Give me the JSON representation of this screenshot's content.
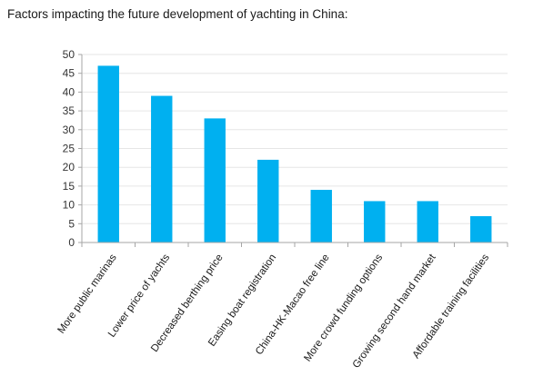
{
  "chart_data": {
    "type": "bar",
    "title": "Factors impacting the future development of yachting in China:",
    "xlabel": "",
    "ylabel": "",
    "categories": [
      "More public marinas",
      "Lower price of yachts",
      "Decreased berthing price",
      "Easing boat registration",
      "China-HK-Macao free line",
      "More crowd funding options",
      "Growing second hand market",
      "Affordable training facilities"
    ],
    "values": [
      47,
      39,
      33,
      22,
      14,
      11,
      11,
      7
    ],
    "ylim": [
      0,
      50
    ],
    "yticks": [
      "0",
      "5",
      "10",
      "15",
      "20",
      "25",
      "30",
      "35",
      "40",
      "45",
      "50"
    ],
    "grid": true,
    "legend": "none",
    "bar_color": "#00b0f0",
    "grid_color": "#e6e6e6",
    "axis_color": "#a6a6a6"
  }
}
